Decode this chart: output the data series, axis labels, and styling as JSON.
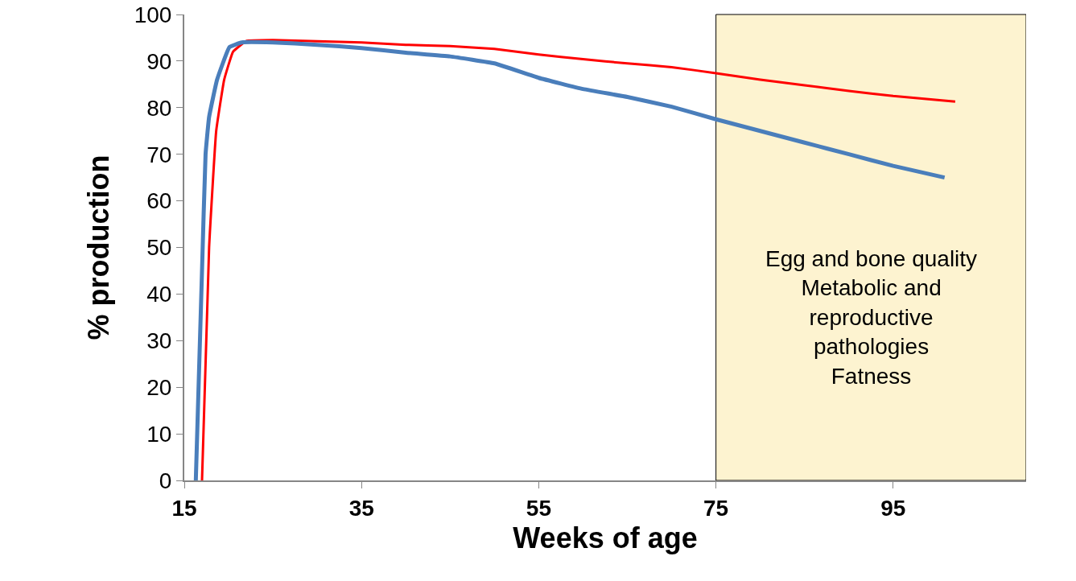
{
  "chart_data": {
    "type": "line",
    "xlabel": "Weeks of age",
    "ylabel": "% production",
    "xlim": [
      15,
      110
    ],
    "xticks": [
      15,
      35,
      55,
      75,
      95
    ],
    "ylim": [
      0,
      100
    ],
    "yticks": [
      0,
      10,
      20,
      30,
      40,
      50,
      60,
      70,
      80,
      90,
      100
    ],
    "grid": false,
    "marker": "none",
    "line_style": "solid",
    "bands": [
      {
        "axis": "x",
        "from": 75,
        "to": 110,
        "label": "Egg and bone quality\nMetabolic and\nreproductive\npathologies\nFatness",
        "color": "#fdf3d0"
      }
    ],
    "series": [
      {
        "color": "#ff0000",
        "x": [
          17.0,
          17.8,
          18.6,
          19.5,
          20.5,
          22,
          25,
          35,
          40,
          45,
          50,
          55,
          60,
          65,
          70,
          75,
          80,
          85,
          90,
          95,
          102
        ],
        "values": [
          0,
          50,
          75,
          86,
          92,
          94.3,
          94.5,
          94,
          93.5,
          93.2,
          92.6,
          91.4,
          90.4,
          89.5,
          88.7,
          87.4,
          86,
          84.8,
          83.6,
          82.5,
          81.3
        ]
      },
      {
        "color": "#4a7ebb",
        "x": [
          16.3,
          17,
          17.4,
          17.8,
          18.7,
          20.1,
          21.5,
          25,
          30,
          35,
          40,
          45,
          50,
          55,
          60,
          65,
          70,
          75,
          80,
          85,
          90,
          95,
          100.8
        ],
        "values": [
          0,
          45,
          70,
          78,
          86,
          93,
          94,
          94,
          93.5,
          92.8,
          91.8,
          91,
          89.5,
          86.4,
          84,
          82.3,
          80.2,
          77.5,
          75,
          72.5,
          70,
          67.5,
          65
        ]
      }
    ]
  }
}
